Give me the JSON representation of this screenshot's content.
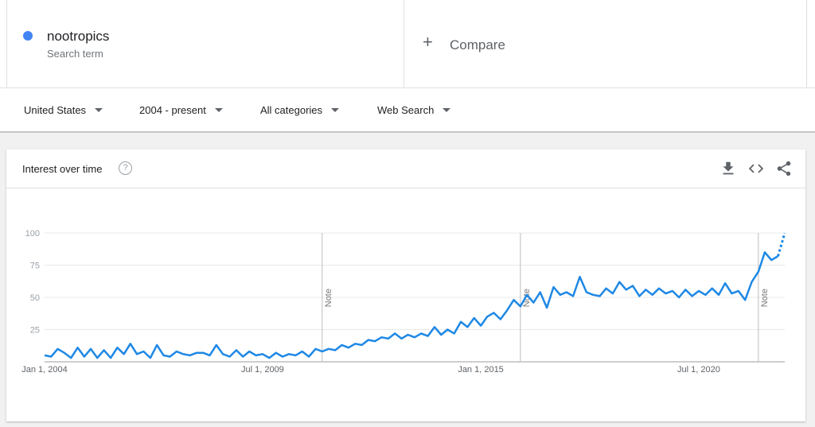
{
  "search_term": {
    "name": "nootropics",
    "subtitle": "Search term",
    "color": "#4285f4"
  },
  "compare": {
    "label": "Compare"
  },
  "filters": {
    "region": "United States",
    "time_range": "2004 - present",
    "category": "All categories",
    "search_type": "Web Search"
  },
  "card": {
    "title": "Interest over time",
    "icons": [
      "help-icon",
      "download-icon",
      "embed-icon",
      "share-icon"
    ]
  },
  "chart_data": {
    "type": "line",
    "title": "",
    "xlabel": "",
    "ylabel": "",
    "ylim": [
      0,
      100
    ],
    "yticks": [
      100,
      75,
      50,
      25
    ],
    "xtick_labels": [
      {
        "label": "Jan 1, 2004",
        "date": "2004-01-01"
      },
      {
        "label": "Jul 1, 2009",
        "date": "2009-07-01"
      },
      {
        "label": "Jan 1, 2015",
        "date": "2015-01-01"
      },
      {
        "label": "Jul 1, 2020",
        "date": "2020-07-01"
      }
    ],
    "notes": [
      {
        "label": "Note",
        "date": "2011-01-01"
      },
      {
        "label": "Note",
        "date": "2016-01-01"
      },
      {
        "label": "Note",
        "date": "2022-01-01"
      }
    ],
    "color": "#1e88e5",
    "series": [
      {
        "points": [
          [
            "2004-01",
            5
          ],
          [
            "2004-03",
            4
          ],
          [
            "2004-05",
            10
          ],
          [
            "2004-07",
            7
          ],
          [
            "2004-09",
            3
          ],
          [
            "2004-11",
            11
          ],
          [
            "2005-01",
            4
          ],
          [
            "2005-03",
            10
          ],
          [
            "2005-05",
            3
          ],
          [
            "2005-07",
            9
          ],
          [
            "2005-09",
            3
          ],
          [
            "2005-11",
            11
          ],
          [
            "2006-01",
            6
          ],
          [
            "2006-03",
            14
          ],
          [
            "2006-05",
            6
          ],
          [
            "2006-07",
            8
          ],
          [
            "2006-09",
            3
          ],
          [
            "2006-11",
            13
          ],
          [
            "2007-01",
            5
          ],
          [
            "2007-03",
            4
          ],
          [
            "2007-05",
            8
          ],
          [
            "2007-07",
            6
          ],
          [
            "2007-09",
            5
          ],
          [
            "2007-11",
            7
          ],
          [
            "2008-01",
            7
          ],
          [
            "2008-03",
            5
          ],
          [
            "2008-05",
            13
          ],
          [
            "2008-07",
            6
          ],
          [
            "2008-09",
            4
          ],
          [
            "2008-11",
            9
          ],
          [
            "2009-01",
            4
          ],
          [
            "2009-03",
            8
          ],
          [
            "2009-05",
            5
          ],
          [
            "2009-07",
            6
          ],
          [
            "2009-09",
            3
          ],
          [
            "2009-11",
            7
          ],
          [
            "2010-01",
            4
          ],
          [
            "2010-03",
            6
          ],
          [
            "2010-05",
            5
          ],
          [
            "2010-07",
            8
          ],
          [
            "2010-09",
            4
          ],
          [
            "2010-11",
            10
          ],
          [
            "2011-01",
            8
          ],
          [
            "2011-03",
            10
          ],
          [
            "2011-05",
            9
          ],
          [
            "2011-07",
            13
          ],
          [
            "2011-09",
            11
          ],
          [
            "2011-11",
            14
          ],
          [
            "2012-01",
            13
          ],
          [
            "2012-03",
            17
          ],
          [
            "2012-05",
            16
          ],
          [
            "2012-07",
            19
          ],
          [
            "2012-09",
            18
          ],
          [
            "2012-11",
            22
          ],
          [
            "2013-01",
            18
          ],
          [
            "2013-03",
            21
          ],
          [
            "2013-05",
            19
          ],
          [
            "2013-07",
            22
          ],
          [
            "2013-09",
            20
          ],
          [
            "2013-11",
            27
          ],
          [
            "2014-01",
            21
          ],
          [
            "2014-03",
            25
          ],
          [
            "2014-05",
            22
          ],
          [
            "2014-07",
            31
          ],
          [
            "2014-09",
            27
          ],
          [
            "2014-11",
            34
          ],
          [
            "2015-01",
            28
          ],
          [
            "2015-03",
            35
          ],
          [
            "2015-05",
            38
          ],
          [
            "2015-07",
            33
          ],
          [
            "2015-09",
            40
          ],
          [
            "2015-11",
            48
          ],
          [
            "2016-01",
            43
          ],
          [
            "2016-03",
            52
          ],
          [
            "2016-05",
            46
          ],
          [
            "2016-07",
            54
          ],
          [
            "2016-09",
            42
          ],
          [
            "2016-11",
            58
          ],
          [
            "2017-01",
            52
          ],
          [
            "2017-03",
            54
          ],
          [
            "2017-05",
            51
          ],
          [
            "2017-07",
            66
          ],
          [
            "2017-09",
            54
          ],
          [
            "2017-11",
            52
          ],
          [
            "2018-01",
            51
          ],
          [
            "2018-03",
            57
          ],
          [
            "2018-05",
            53
          ],
          [
            "2018-07",
            62
          ],
          [
            "2018-09",
            56
          ],
          [
            "2018-11",
            59
          ],
          [
            "2019-01",
            51
          ],
          [
            "2019-03",
            56
          ],
          [
            "2019-05",
            52
          ],
          [
            "2019-07",
            57
          ],
          [
            "2019-09",
            53
          ],
          [
            "2019-11",
            55
          ],
          [
            "2020-01",
            50
          ],
          [
            "2020-03",
            56
          ],
          [
            "2020-05",
            51
          ],
          [
            "2020-07",
            55
          ],
          [
            "2020-09",
            52
          ],
          [
            "2020-11",
            57
          ],
          [
            "2021-01",
            52
          ],
          [
            "2021-03",
            61
          ],
          [
            "2021-05",
            53
          ],
          [
            "2021-07",
            55
          ],
          [
            "2021-09",
            48
          ],
          [
            "2021-11",
            62
          ],
          [
            "2022-01",
            70
          ],
          [
            "2022-03",
            85
          ],
          [
            "2022-05",
            79
          ],
          [
            "2022-07",
            82
          ]
        ],
        "partial_points": [
          [
            "2022-07",
            82
          ],
          [
            "2022-09",
            100
          ]
        ]
      }
    ]
  }
}
